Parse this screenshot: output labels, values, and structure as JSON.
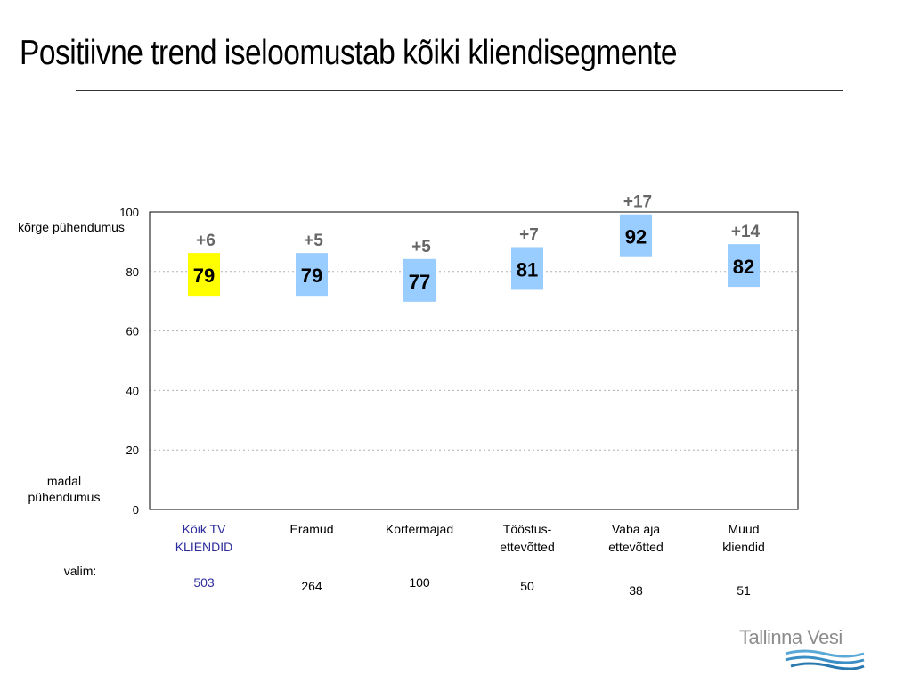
{
  "title": "Positiivne trend iseloomustab kõiki kliendisegmente",
  "y_labels": {
    "high": "kõrge pühendumus",
    "low": "madal pühendumus"
  },
  "sample_label": "valim:",
  "samples": [
    "503",
    "264",
    "100",
    "50",
    "38",
    "51"
  ],
  "category_labels": [
    "Kõik TV KLIENDID",
    "Eramud",
    "Kortermajad",
    "Tööstus-ettevõtted",
    "Vaba aja ettevõtted",
    "Muud kliendid"
  ],
  "logo": {
    "text": "Tallinna Vesi"
  },
  "colors": {
    "highlight": "#ffff00",
    "box": "#99ccff",
    "change": "#666666",
    "first_category": "#2c2c9c"
  },
  "chart_data": {
    "type": "scatter",
    "categories": [
      "Kõik TV\nKLIENDID",
      "Eramud",
      "Kortermajad",
      "Tööstus-\nettevõtted",
      "Vaba aja\nettevõtted",
      "Muud\nkliendid"
    ],
    "series": [
      {
        "values": [
          79,
          79,
          77,
          81,
          92,
          82
        ]
      }
    ],
    "changes": [
      "+6",
      "+5",
      "+5",
      "+7",
      "+17",
      "+14"
    ],
    "highlight_index": 0,
    "ylim": [
      0,
      100
    ],
    "yticks": [
      0,
      20,
      40,
      60,
      80,
      100
    ],
    "grid": true
  }
}
